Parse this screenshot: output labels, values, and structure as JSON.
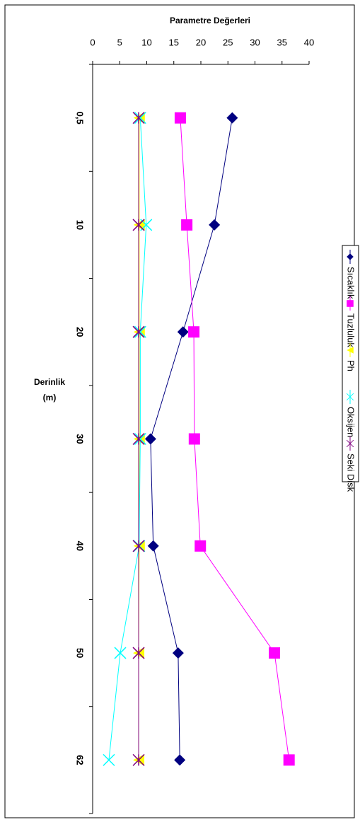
{
  "chart_data": {
    "type": "line",
    "orientation": "vertical",
    "title": "Parametre Değerleri",
    "y_label": [
      "Derinlik",
      "(m)"
    ],
    "categories": [
      "0,5",
      "10",
      "20",
      "30",
      "40",
      "50",
      "62"
    ],
    "xlim": [
      0,
      40
    ],
    "xticks": [
      0,
      5,
      10,
      15,
      20,
      25,
      30,
      35,
      40
    ],
    "legend": "right",
    "series": [
      {
        "name": "Sıcaklık",
        "color": "#000080",
        "marker": "diamond",
        "values": [
          25.8,
          22.5,
          16.7,
          10.7,
          11.2,
          15.8,
          16.1
        ]
      },
      {
        "name": "Tuzluluk",
        "color": "#ff00ff",
        "marker": "square",
        "values": [
          16.2,
          17.4,
          18.7,
          18.8,
          19.9,
          33.6,
          36.3
        ]
      },
      {
        "name": "Ph",
        "color": "#ffff00",
        "marker": "triangle",
        "values": [
          8.6,
          8.6,
          8.6,
          8.6,
          8.6,
          8.5,
          8.5
        ]
      },
      {
        "name": "Oksijen",
        "color": "#00ffff",
        "marker": "x",
        "values": [
          8.8,
          9.9,
          8.8,
          8.8,
          8.6,
          5.1,
          3.0
        ]
      },
      {
        "name": "Seki Disk",
        "color": "#800080",
        "marker": "star",
        "values": [
          8.5,
          8.5,
          8.5,
          8.5,
          8.5,
          8.5,
          8.5
        ]
      }
    ]
  }
}
